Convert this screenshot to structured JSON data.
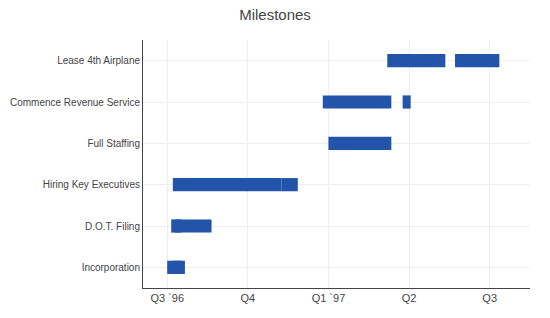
{
  "chart_data": {
    "type": "bar",
    "orientation": "horizontal",
    "title": "Milestones",
    "categories": [
      "Incorporation",
      "D.O.T. Filing",
      "Hiring Key Executives",
      "Full Staffing",
      "Commence Revenue Service",
      "Lease 4th Airplane"
    ],
    "bars": [
      {
        "category": "Incorporation",
        "start": 0.0,
        "end": 0.18
      },
      {
        "category": "Incorporation",
        "start": 0.07,
        "end": 0.22
      },
      {
        "category": "D.O.T. Filing",
        "start": 0.05,
        "end": 0.18
      },
      {
        "category": "D.O.T. Filing",
        "start": 0.1,
        "end": 0.55
      },
      {
        "category": "Hiring Key Executives",
        "start": 0.07,
        "end": 1.42
      },
      {
        "category": "Hiring Key Executives",
        "start": 1.42,
        "end": 1.62
      },
      {
        "category": "Full Staffing",
        "start": 2.0,
        "end": 2.78
      },
      {
        "category": "Commence Revenue Service",
        "start": 1.93,
        "end": 2.78
      },
      {
        "category": "Commence Revenue Service",
        "start": 2.92,
        "end": 3.02
      },
      {
        "category": "Lease 4th Airplane",
        "start": 2.73,
        "end": 3.45
      },
      {
        "category": "Lease 4th Airplane",
        "start": 3.57,
        "end": 4.12
      }
    ],
    "color": "#2255aa",
    "xlim": [
      -0.3,
      4.5
    ],
    "xticks": [
      {
        "value": 0,
        "label": "Q3 `96"
      },
      {
        "value": 1,
        "label": "Q4"
      },
      {
        "value": 2,
        "label": "Q1 `97"
      },
      {
        "value": 3,
        "label": "Q2"
      },
      {
        "value": 4,
        "label": "Q3"
      }
    ],
    "grid": true
  }
}
